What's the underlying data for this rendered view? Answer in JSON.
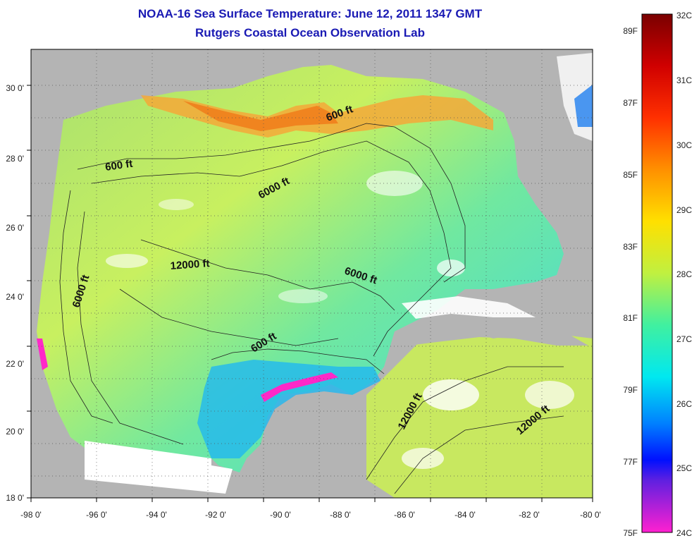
{
  "title_line1": "NOAA-16 Sea Surface Temperature:  June 12, 2011 1347 GMT",
  "title_line2": "Rutgers Coastal Ocean Observation Lab",
  "lon_ticks": [
    "-98 0'",
    "-96 0'",
    "-94 0'",
    "-92 0'",
    "-90 0'",
    "-88 0'",
    "-86 0'",
    "-84 0'",
    "-82 0'",
    "-80 0'"
  ],
  "lat_ticks": [
    "30 0'",
    "28 0'",
    "26 0'",
    "24 0'",
    "22 0'",
    "20 0'",
    "18 0'"
  ],
  "contour_labels": [
    "600 ft",
    "600 ft",
    "6000 ft",
    "12000 ft",
    "6000 ft",
    "6000 ft",
    "600 ft",
    "12000 ft",
    "12000 ft"
  ],
  "colorbar": {
    "celsius": [
      "32C",
      "31C",
      "30C",
      "29C",
      "28C",
      "27C",
      "26C",
      "25C",
      "24C"
    ],
    "fahrenheit": [
      "89F",
      "87F",
      "85F",
      "83F",
      "81F",
      "79F",
      "77F",
      "75F"
    ]
  },
  "colors": {
    "land": "#b4b4b4",
    "title": "#1a1ab4",
    "warm": "#f07818",
    "cold": "#ff28c8",
    "cloud": "#ffffff"
  }
}
